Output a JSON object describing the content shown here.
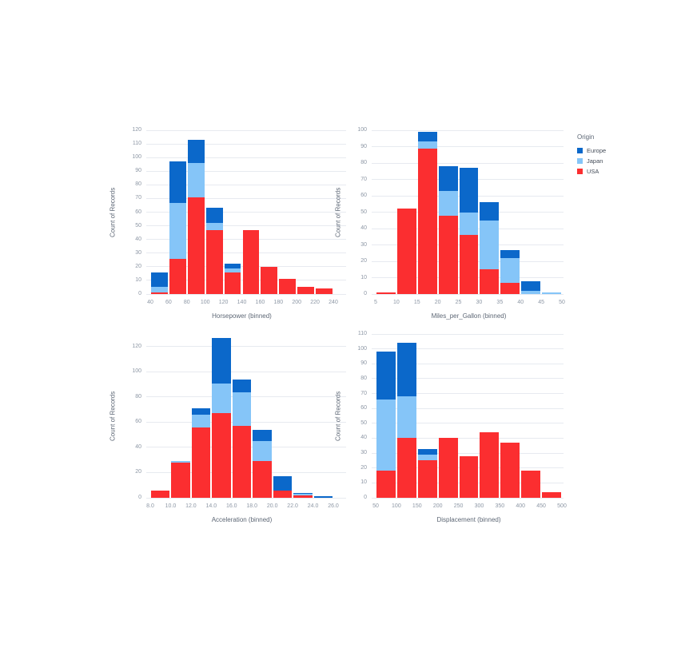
{
  "style": {
    "background": "#ffffff",
    "grid_color": "#e7eaf0",
    "tick_label_color": "#8d97a5",
    "axis_title_color": "#5d6775",
    "legend_label_color": "#454d59"
  },
  "legend": {
    "title": "Origin",
    "entries": [
      {
        "label": "Europe",
        "color": "#0b68ca"
      },
      {
        "label": "Japan",
        "color": "#85c5f8"
      },
      {
        "label": "USA",
        "color": "#fb2e30"
      }
    ]
  },
  "chart_data": [
    {
      "type": "bar",
      "stacked": true,
      "stack_order": "bottom-to-top",
      "xlabel": "Horsepower (binned)",
      "ylabel": "Count of Records",
      "x_tick_labels": [
        "40",
        "60",
        "80",
        "100",
        "120",
        "140",
        "160",
        "180",
        "200",
        "220",
        "240"
      ],
      "bin_edges": [
        40,
        60,
        80,
        100,
        120,
        140,
        160,
        180,
        200,
        220,
        240
      ],
      "ylim": [
        0,
        120
      ],
      "y_ticks": [
        0,
        10,
        20,
        30,
        40,
        50,
        60,
        70,
        80,
        90,
        100,
        110,
        120
      ],
      "grid": true,
      "series": [
        {
          "name": "USA",
          "values": [
            1,
            26,
            71,
            47,
            16,
            47,
            20,
            11,
            5,
            4
          ]
        },
        {
          "name": "Japan",
          "values": [
            4,
            41,
            25,
            5,
            3,
            0,
            0,
            0,
            0,
            0
          ]
        },
        {
          "name": "Europe",
          "values": [
            11,
            30,
            17,
            11,
            3,
            0,
            0,
            0,
            0,
            0
          ]
        }
      ]
    },
    {
      "type": "bar",
      "stacked": true,
      "stack_order": "bottom-to-top",
      "xlabel": "Miles_per_Gallon (binned)",
      "ylabel": "Count of Records",
      "x_tick_labels": [
        "5",
        "10",
        "15",
        "20",
        "25",
        "30",
        "35",
        "40",
        "45",
        "50"
      ],
      "bin_edges": [
        5,
        10,
        15,
        20,
        25,
        30,
        35,
        40,
        45,
        50
      ],
      "ylim": [
        0,
        100
      ],
      "y_ticks": [
        0,
        10,
        20,
        30,
        40,
        50,
        60,
        70,
        80,
        90,
        100
      ],
      "grid": true,
      "series": [
        {
          "name": "USA",
          "values": [
            1,
            52,
            89,
            48,
            36,
            15,
            7,
            0,
            0
          ]
        },
        {
          "name": "Japan",
          "values": [
            0,
            0,
            4,
            15,
            14,
            30,
            15,
            2,
            1
          ]
        },
        {
          "name": "Europe",
          "values": [
            0,
            0,
            6,
            15,
            27,
            11,
            5,
            6,
            0
          ]
        }
      ]
    },
    {
      "type": "bar",
      "stacked": true,
      "stack_order": "bottom-to-top",
      "xlabel": "Acceleration (binned)",
      "ylabel": "Count of Records",
      "x_tick_labels": [
        "8.0",
        "10.0",
        "12.0",
        "14.0",
        "16.0",
        "18.0",
        "20.0",
        "22.0",
        "24.0",
        "26.0"
      ],
      "bin_edges": [
        8,
        10,
        12,
        14,
        16,
        18,
        20,
        22,
        24,
        26
      ],
      "ylim": [
        0,
        130
      ],
      "y_ticks": [
        0,
        20,
        40,
        60,
        80,
        100,
        120
      ],
      "grid": true,
      "series": [
        {
          "name": "USA",
          "values": [
            6,
            28,
            56,
            67,
            57,
            29,
            6,
            2,
            0
          ]
        },
        {
          "name": "Japan",
          "values": [
            0,
            1,
            10,
            24,
            27,
            16,
            0,
            1,
            0
          ]
        },
        {
          "name": "Europe",
          "values": [
            0,
            0,
            5,
            36,
            10,
            9,
            11,
            1,
            1
          ]
        }
      ]
    },
    {
      "type": "bar",
      "stacked": true,
      "stack_order": "bottom-to-top",
      "xlabel": "Displacement (binned)",
      "ylabel": "Count of Records",
      "x_tick_labels": [
        "50",
        "100",
        "150",
        "200",
        "250",
        "300",
        "350",
        "400",
        "450",
        "500"
      ],
      "bin_edges": [
        50,
        100,
        150,
        200,
        250,
        300,
        350,
        400,
        450,
        500
      ],
      "ylim": [
        0,
        110
      ],
      "y_ticks": [
        0,
        10,
        20,
        30,
        40,
        50,
        60,
        70,
        80,
        90,
        100,
        110
      ],
      "grid": true,
      "series": [
        {
          "name": "USA",
          "values": [
            18,
            40,
            25,
            40,
            28,
            44,
            37,
            18,
            4
          ]
        },
        {
          "name": "Japan",
          "values": [
            48,
            28,
            4,
            0,
            0,
            0,
            0,
            0,
            0
          ]
        },
        {
          "name": "Europe",
          "values": [
            32,
            36,
            4,
            0,
            0,
            0,
            0,
            0,
            0
          ]
        }
      ]
    }
  ]
}
